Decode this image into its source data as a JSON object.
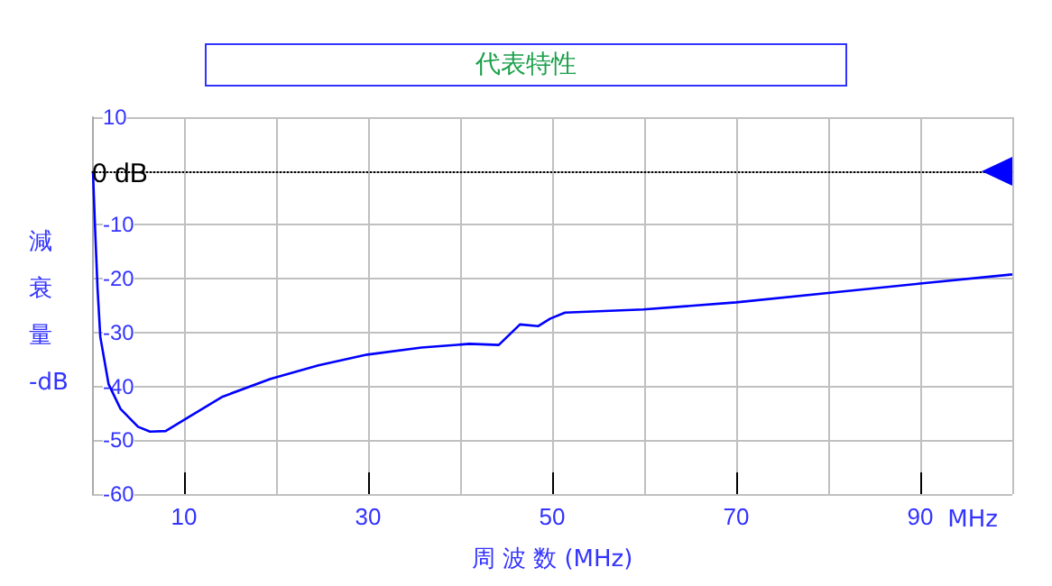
{
  "chart_data": {
    "type": "line",
    "title": "代表特性",
    "xlabel": "周 波 数 (MHz)",
    "ylabel": "減衰量 -dB",
    "annotations": [
      "MHz"
    ],
    "x": [
      0.1,
      0.33,
      0.6,
      0.9,
      1.8,
      3.1,
      5.0,
      6.3,
      8.0,
      10.3,
      14.2,
      19.4,
      24.6,
      29.9,
      35.8,
      41,
      44.2,
      46.5,
      48.5,
      49.8,
      51.4,
      59.9,
      70,
      80.2,
      90,
      100
    ],
    "series": [
      {
        "color": "#0000ff",
        "values": [
          0,
          -10.6,
          -21.8,
          -30.8,
          -39.6,
          -44.2,
          -47.5,
          -48.4,
          -48.3,
          -45.9,
          -41.9,
          -38.6,
          -36.1,
          -34.1,
          -32.8,
          -32.1,
          -32.3,
          -28.5,
          -28.8,
          -27.4,
          -26.3,
          -25.7,
          -24.4,
          -22.6,
          -20.9,
          -19.2
        ]
      }
    ],
    "xlim": [
      0,
      100
    ],
    "xticks": [
      {
        "value": 0,
        "label": null
      },
      10,
      {
        "value": 20,
        "label": null
      },
      30,
      {
        "value": 40,
        "label": null
      },
      50,
      {
        "value": 60,
        "label": null
      },
      70,
      {
        "value": 80,
        "label": null
      },
      90,
      {
        "value": 100,
        "label": null
      }
    ],
    "ylim": [
      -60,
      10
    ],
    "yticks": [
      -60,
      -50,
      -40,
      -30,
      -20,
      -10,
      {
        "value": 0,
        "label": null
      },
      10
    ],
    "ref_lines": [
      {
        "axis": "y",
        "value": 0,
        "label": "0 dB",
        "color": "#000000",
        "line_style": "dotted"
      }
    ],
    "grid": true,
    "marker": "none",
    "line_style": "solid"
  }
}
